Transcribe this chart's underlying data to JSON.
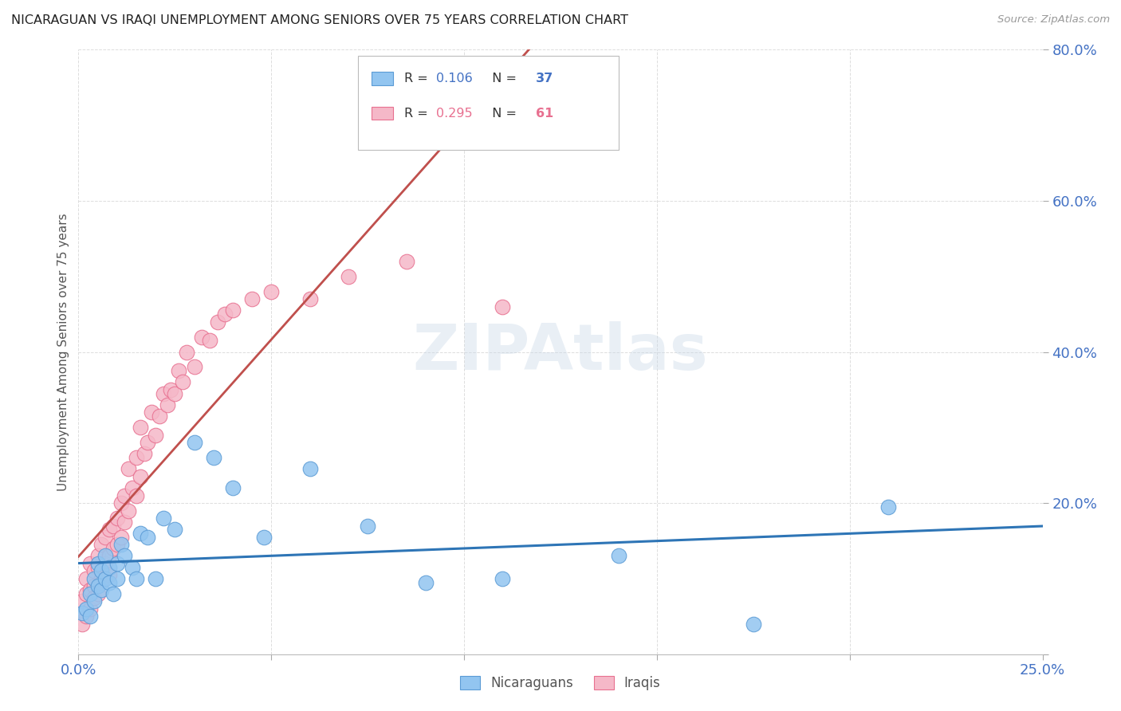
{
  "title": "NICARAGUAN VS IRAQI UNEMPLOYMENT AMONG SENIORS OVER 75 YEARS CORRELATION CHART",
  "source": "Source: ZipAtlas.com",
  "ylabel": "Unemployment Among Seniors over 75 years",
  "xlim": [
    0.0,
    0.25
  ],
  "ylim": [
    0.0,
    0.8
  ],
  "xticks": [
    0.0,
    0.05,
    0.1,
    0.15,
    0.2,
    0.25
  ],
  "yticks": [
    0.0,
    0.2,
    0.4,
    0.6,
    0.8
  ],
  "ytick_labels": [
    "",
    "20.0%",
    "40.0%",
    "60.0%",
    "80.0%"
  ],
  "xtick_labels": [
    "0.0%",
    "",
    "",
    "",
    "",
    "25.0%"
  ],
  "nic_color": "#92C5F0",
  "nic_edge_color": "#5B9BD5",
  "iraqi_color": "#F5B8C8",
  "iraqi_edge_color": "#E87090",
  "nic_line_color": "#2E75B6",
  "iraqi_line_color": "#C0504D",
  "legend_R_nic": "0.106",
  "legend_N_nic": "37",
  "legend_R_iraqi": "0.295",
  "legend_N_iraqi": "61",
  "nic_R_color": "#4472C4",
  "nic_N_color": "#4472C4",
  "iraqi_R_color": "#E87090",
  "iraqi_N_color": "#E87090",
  "background_color": "#FFFFFF",
  "grid_color": "#DDDDDD",
  "nic_x": [
    0.001,
    0.002,
    0.003,
    0.003,
    0.004,
    0.004,
    0.005,
    0.005,
    0.006,
    0.006,
    0.007,
    0.007,
    0.008,
    0.008,
    0.009,
    0.01,
    0.01,
    0.011,
    0.012,
    0.014,
    0.015,
    0.016,
    0.018,
    0.02,
    0.022,
    0.025,
    0.03,
    0.035,
    0.04,
    0.048,
    0.06,
    0.075,
    0.09,
    0.11,
    0.14,
    0.175,
    0.21
  ],
  "nic_y": [
    0.055,
    0.06,
    0.05,
    0.08,
    0.1,
    0.07,
    0.12,
    0.09,
    0.11,
    0.085,
    0.13,
    0.1,
    0.095,
    0.115,
    0.08,
    0.12,
    0.1,
    0.145,
    0.13,
    0.115,
    0.1,
    0.16,
    0.155,
    0.1,
    0.18,
    0.165,
    0.28,
    0.26,
    0.22,
    0.155,
    0.245,
    0.17,
    0.095,
    0.1,
    0.13,
    0.04,
    0.195
  ],
  "iraqi_x": [
    0.001,
    0.001,
    0.002,
    0.002,
    0.002,
    0.003,
    0.003,
    0.003,
    0.004,
    0.004,
    0.004,
    0.005,
    0.005,
    0.005,
    0.006,
    0.006,
    0.006,
    0.007,
    0.007,
    0.008,
    0.008,
    0.008,
    0.009,
    0.009,
    0.01,
    0.01,
    0.011,
    0.011,
    0.012,
    0.012,
    0.013,
    0.013,
    0.014,
    0.015,
    0.015,
    0.016,
    0.016,
    0.017,
    0.018,
    0.019,
    0.02,
    0.021,
    0.022,
    0.023,
    0.024,
    0.025,
    0.026,
    0.027,
    0.028,
    0.03,
    0.032,
    0.034,
    0.036,
    0.038,
    0.04,
    0.045,
    0.05,
    0.06,
    0.07,
    0.085,
    0.11
  ],
  "iraqi_y": [
    0.04,
    0.07,
    0.05,
    0.08,
    0.1,
    0.06,
    0.085,
    0.12,
    0.09,
    0.11,
    0.075,
    0.08,
    0.115,
    0.13,
    0.1,
    0.095,
    0.145,
    0.12,
    0.155,
    0.13,
    0.105,
    0.165,
    0.14,
    0.17,
    0.145,
    0.18,
    0.155,
    0.2,
    0.175,
    0.21,
    0.19,
    0.245,
    0.22,
    0.21,
    0.26,
    0.235,
    0.3,
    0.265,
    0.28,
    0.32,
    0.29,
    0.315,
    0.345,
    0.33,
    0.35,
    0.345,
    0.375,
    0.36,
    0.4,
    0.38,
    0.42,
    0.415,
    0.44,
    0.45,
    0.455,
    0.47,
    0.48,
    0.47,
    0.5,
    0.52,
    0.46
  ],
  "watermark_text": "ZIPAtlas",
  "watermark_color": "#C8D8E8",
  "watermark_alpha": 0.4
}
